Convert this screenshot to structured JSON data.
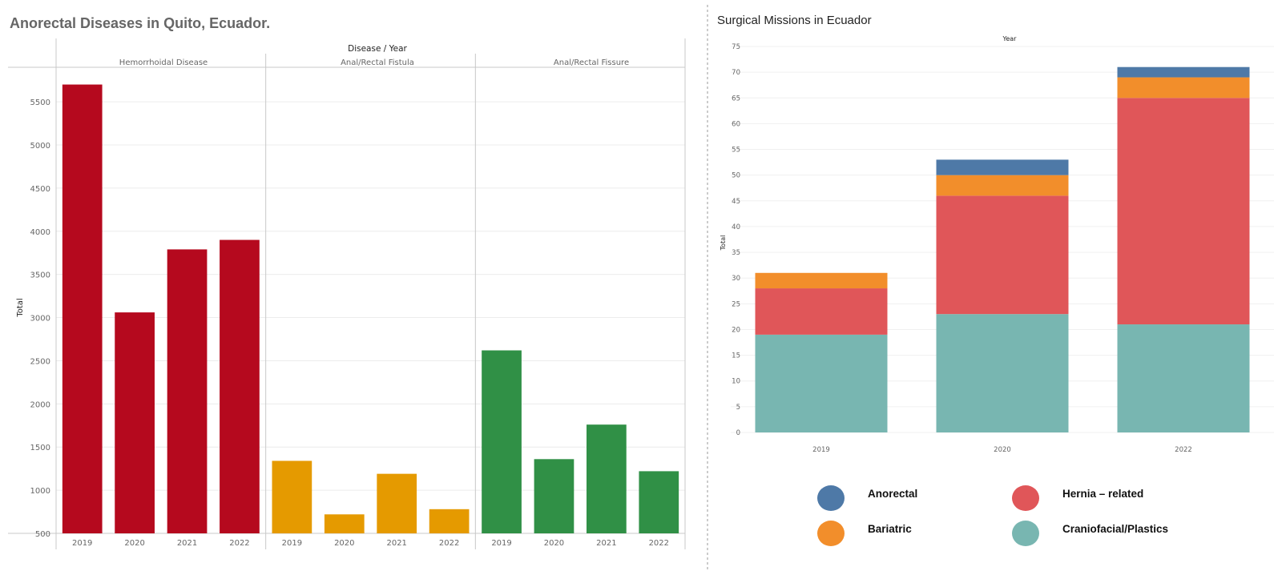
{
  "chart_data": [
    {
      "type": "bar",
      "title": "Anorectal Diseases in Quito, Ecuador.",
      "header": "Disease / Year",
      "ylabel": "Total",
      "ylim": [
        500,
        5900
      ],
      "yticks": [
        500,
        1000,
        1500,
        2000,
        2500,
        3000,
        3500,
        4000,
        4500,
        5000,
        5500
      ],
      "panels": [
        {
          "name": "Hemorrhoidal Disease",
          "color": "#b5091e",
          "categories": [
            "2019",
            "2020",
            "2021",
            "2022"
          ],
          "values": [
            5700,
            3060,
            3790,
            3900
          ]
        },
        {
          "name": "Anal/Rectal Fistula",
          "color": "#e59a00",
          "categories": [
            "2019",
            "2020",
            "2021",
            "2022"
          ],
          "values": [
            1340,
            720,
            1190,
            780
          ]
        },
        {
          "name": "Anal/Rectal Fissure",
          "color": "#309046",
          "categories": [
            "2019",
            "2020",
            "2021",
            "2022"
          ],
          "values": [
            2620,
            1360,
            1760,
            1220
          ]
        }
      ]
    },
    {
      "type": "bar",
      "stacked": true,
      "title": "Surgical Missions in Ecuador",
      "header": "Year",
      "ylabel": "Total",
      "ylim": [
        0,
        75
      ],
      "yticks": [
        0,
        5,
        10,
        15,
        20,
        25,
        30,
        35,
        40,
        45,
        50,
        55,
        60,
        65,
        70,
        75
      ],
      "categories": [
        "2019",
        "2020",
        "2022"
      ],
      "series": [
        {
          "name": "Craniofacial/Plastics",
          "color": "#78b6b1",
          "values": [
            19,
            23,
            21
          ]
        },
        {
          "name": "Hernia – related",
          "color": "#e05659",
          "values": [
            9,
            23,
            44
          ]
        },
        {
          "name": "Bariatric",
          "color": "#f28e2b",
          "values": [
            3,
            4,
            4
          ]
        },
        {
          "name": "Anorectal",
          "color": "#4e79a7",
          "values": [
            0,
            3,
            2
          ]
        }
      ],
      "legend": [
        {
          "name": "Anorectal",
          "color": "#4e79a7"
        },
        {
          "name": "Hernia – related",
          "color": "#e05659"
        },
        {
          "name": "Bariatric",
          "color": "#f28e2b"
        },
        {
          "name": "Craniofacial/Plastics",
          "color": "#78b6b1"
        }
      ],
      "legend_position": "bottom"
    }
  ]
}
